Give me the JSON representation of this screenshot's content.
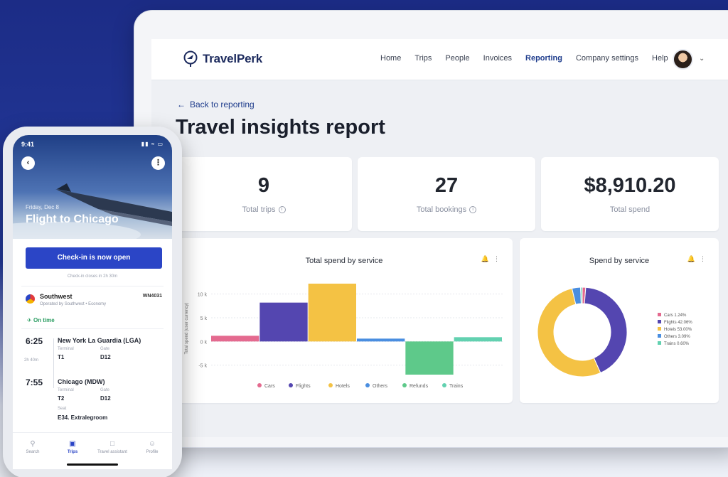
{
  "colors": {
    "brand_navy": "#1d2b5e",
    "link_blue": "#1e3c8c",
    "checkin_blue": "#2b45c6",
    "ontime_green": "#2b9d62"
  },
  "desktop": {
    "logo_text": "TravelPerk",
    "nav": [
      "Home",
      "Trips",
      "People",
      "Invoices",
      "Reporting",
      "Company settings",
      "Help"
    ],
    "active_nav": "Reporting",
    "back_link": "Back to reporting",
    "page_title": "Travel insights report",
    "stats": [
      {
        "value": "9",
        "label": "Total trips",
        "info": true
      },
      {
        "value": "27",
        "label": "Total bookings",
        "info": true
      },
      {
        "value": "$8,910.20",
        "label": "Total spend",
        "info": false
      }
    ]
  },
  "chart_data": [
    {
      "type": "bar",
      "title": "Total spend by service",
      "ylabel": "Total spend (user currency)",
      "categories": [
        "Cars",
        "Flights",
        "Hotels",
        "Others",
        "Refunds",
        "Trains"
      ],
      "values": [
        1200,
        8200,
        12200,
        600,
        -7000,
        900
      ],
      "colors": [
        "#e46a8f",
        "#5446b0",
        "#f4c244",
        "#4a8ee0",
        "#5ec98a",
        "#62d1b0"
      ],
      "yticks": [
        "10 k",
        "5 k",
        "0 k",
        "-5 k"
      ],
      "ylim": [
        -7000,
        12500
      ],
      "legend": "bottom"
    },
    {
      "type": "pie",
      "title": "Spend by service",
      "labels": [
        "Cars 1.24%",
        "Flights 42.06%",
        "Hotels 53.00%",
        "Others 3.09%",
        "Trains 0.60%"
      ],
      "values": [
        1.24,
        42.06,
        53.0,
        3.09,
        0.6
      ],
      "colors": [
        "#e46a8f",
        "#5446b0",
        "#f4c244",
        "#4a8ee0",
        "#62d1b0"
      ],
      "legend": "right"
    }
  ],
  "phone": {
    "status_time": "9:41",
    "hero_date": "Friday, Dec 8",
    "hero_title": "Flight to Chicago",
    "checkin_button": "Check-in is now open",
    "checkin_note": "Check-in closes in 2h 30m",
    "airline": "Southwest",
    "airline_sub": "Operated by Southwest • Economy",
    "flight_no": "WN4031",
    "status_text": "On time",
    "duration": "2h 40m",
    "departure": {
      "time": "6:25",
      "city": "New York La Guardia (LGA)",
      "terminal_label": "Terminal",
      "terminal": "T1",
      "gate_label": "Gate",
      "gate": "D12"
    },
    "arrival": {
      "time": "7:55",
      "city": "Chicago (MDW)",
      "terminal_label": "Terminal",
      "terminal": "T2",
      "gate_label": "Gate",
      "gate": "D12",
      "seat_label": "Seat",
      "seat": "E34. Extralegroom"
    },
    "tabs": [
      {
        "label": "Search",
        "icon": "search-icon"
      },
      {
        "label": "Trips",
        "icon": "suitcase-icon"
      },
      {
        "label": "Travel assistant",
        "icon": "chat-icon"
      },
      {
        "label": "Profile",
        "icon": "person-icon"
      }
    ],
    "active_tab": "Trips"
  }
}
